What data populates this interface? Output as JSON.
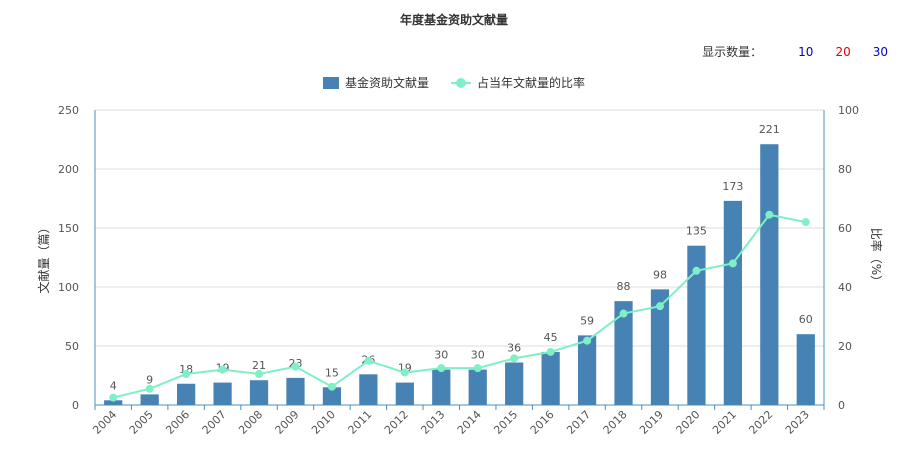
{
  "title": "年度基金资助文献量",
  "count_selector": {
    "label": "显示数量：",
    "options": [
      {
        "label": "10",
        "color": "#0000cc"
      },
      {
        "label": "20",
        "color": "#e00000"
      },
      {
        "label": "30",
        "color": "#0000cc"
      }
    ]
  },
  "colors": {
    "bar": "#4682b4",
    "line": "#7ff0c6",
    "axis": "#4a90b8",
    "grid": "#dddddd"
  },
  "chart_data": {
    "type": "bar+line",
    "title": "年度基金资助文献量",
    "legend": [
      "基金资助文献量",
      "占当年文献量的比率"
    ],
    "legend_position": "top-center",
    "categories": [
      "2004",
      "2005",
      "2006",
      "2007",
      "2008",
      "2009",
      "2010",
      "2011",
      "2012",
      "2013",
      "2014",
      "2015",
      "2016",
      "2017",
      "2018",
      "2019",
      "2020",
      "2021",
      "2022",
      "2023"
    ],
    "series": [
      {
        "name": "基金资助文献量",
        "type": "bar",
        "axis": "left",
        "values": [
          4,
          9,
          18,
          19,
          21,
          23,
          15,
          26,
          19,
          30,
          30,
          36,
          45,
          59,
          88,
          98,
          135,
          173,
          221,
          60
        ]
      },
      {
        "name": "占当年文献量的比率",
        "type": "line",
        "axis": "right",
        "values": [
          2.5,
          5.5,
          10.5,
          12,
          10.5,
          13,
          6.2,
          15,
          11,
          12.5,
          12.5,
          15.8,
          18,
          21.8,
          31,
          33.5,
          45.5,
          48,
          64.5,
          62
        ]
      }
    ],
    "ylabel_left": "文献量（篇）",
    "ylabel_right": "比率（%）",
    "ylim_left": [
      0,
      250
    ],
    "yticks_left": [
      0,
      50,
      100,
      150,
      200,
      250
    ],
    "ylim_right": [
      0,
      100
    ],
    "yticks_right": [
      0,
      20,
      40,
      60,
      80,
      100
    ],
    "grid": true
  }
}
